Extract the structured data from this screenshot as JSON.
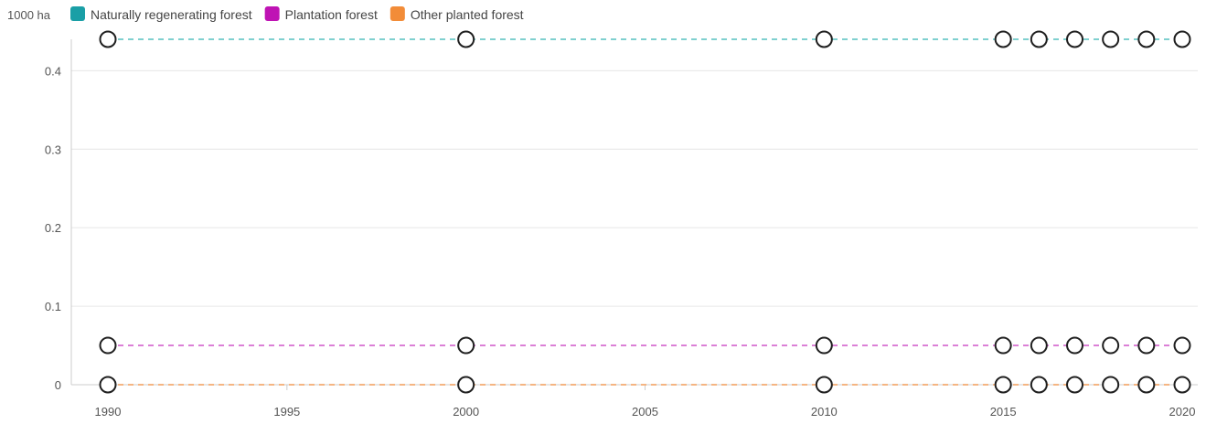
{
  "chart_data": {
    "type": "line",
    "unit_label": "1000 ha",
    "x": [
      1990,
      2000,
      2010,
      2015,
      2016,
      2017,
      2018,
      2019,
      2020
    ],
    "xticks": [
      1990,
      1995,
      2000,
      2005,
      2010,
      2015,
      2020
    ],
    "yticks": [
      0,
      0.1,
      0.2,
      0.3,
      0.4
    ],
    "xlim": [
      1990,
      2020
    ],
    "ylim": [
      0,
      0.44
    ],
    "grid": true,
    "legend_position": "top-left",
    "series": [
      {
        "name": "Naturally regenerating forest",
        "color": "#1a9fa6",
        "line_color": "#7fd0cf",
        "values": [
          0.44,
          0.44,
          0.44,
          0.44,
          0.44,
          0.44,
          0.44,
          0.44,
          0.44
        ]
      },
      {
        "name": "Plantation forest",
        "color": "#bf13b4",
        "line_color": "#db7fd6",
        "values": [
          0.05,
          0.05,
          0.05,
          0.05,
          0.05,
          0.05,
          0.05,
          0.05,
          0.05
        ]
      },
      {
        "name": "Other planted forest",
        "color": "#f28c38",
        "line_color": "#f5b582",
        "values": [
          0,
          0,
          0,
          0,
          0,
          0,
          0,
          0,
          0
        ]
      }
    ]
  }
}
